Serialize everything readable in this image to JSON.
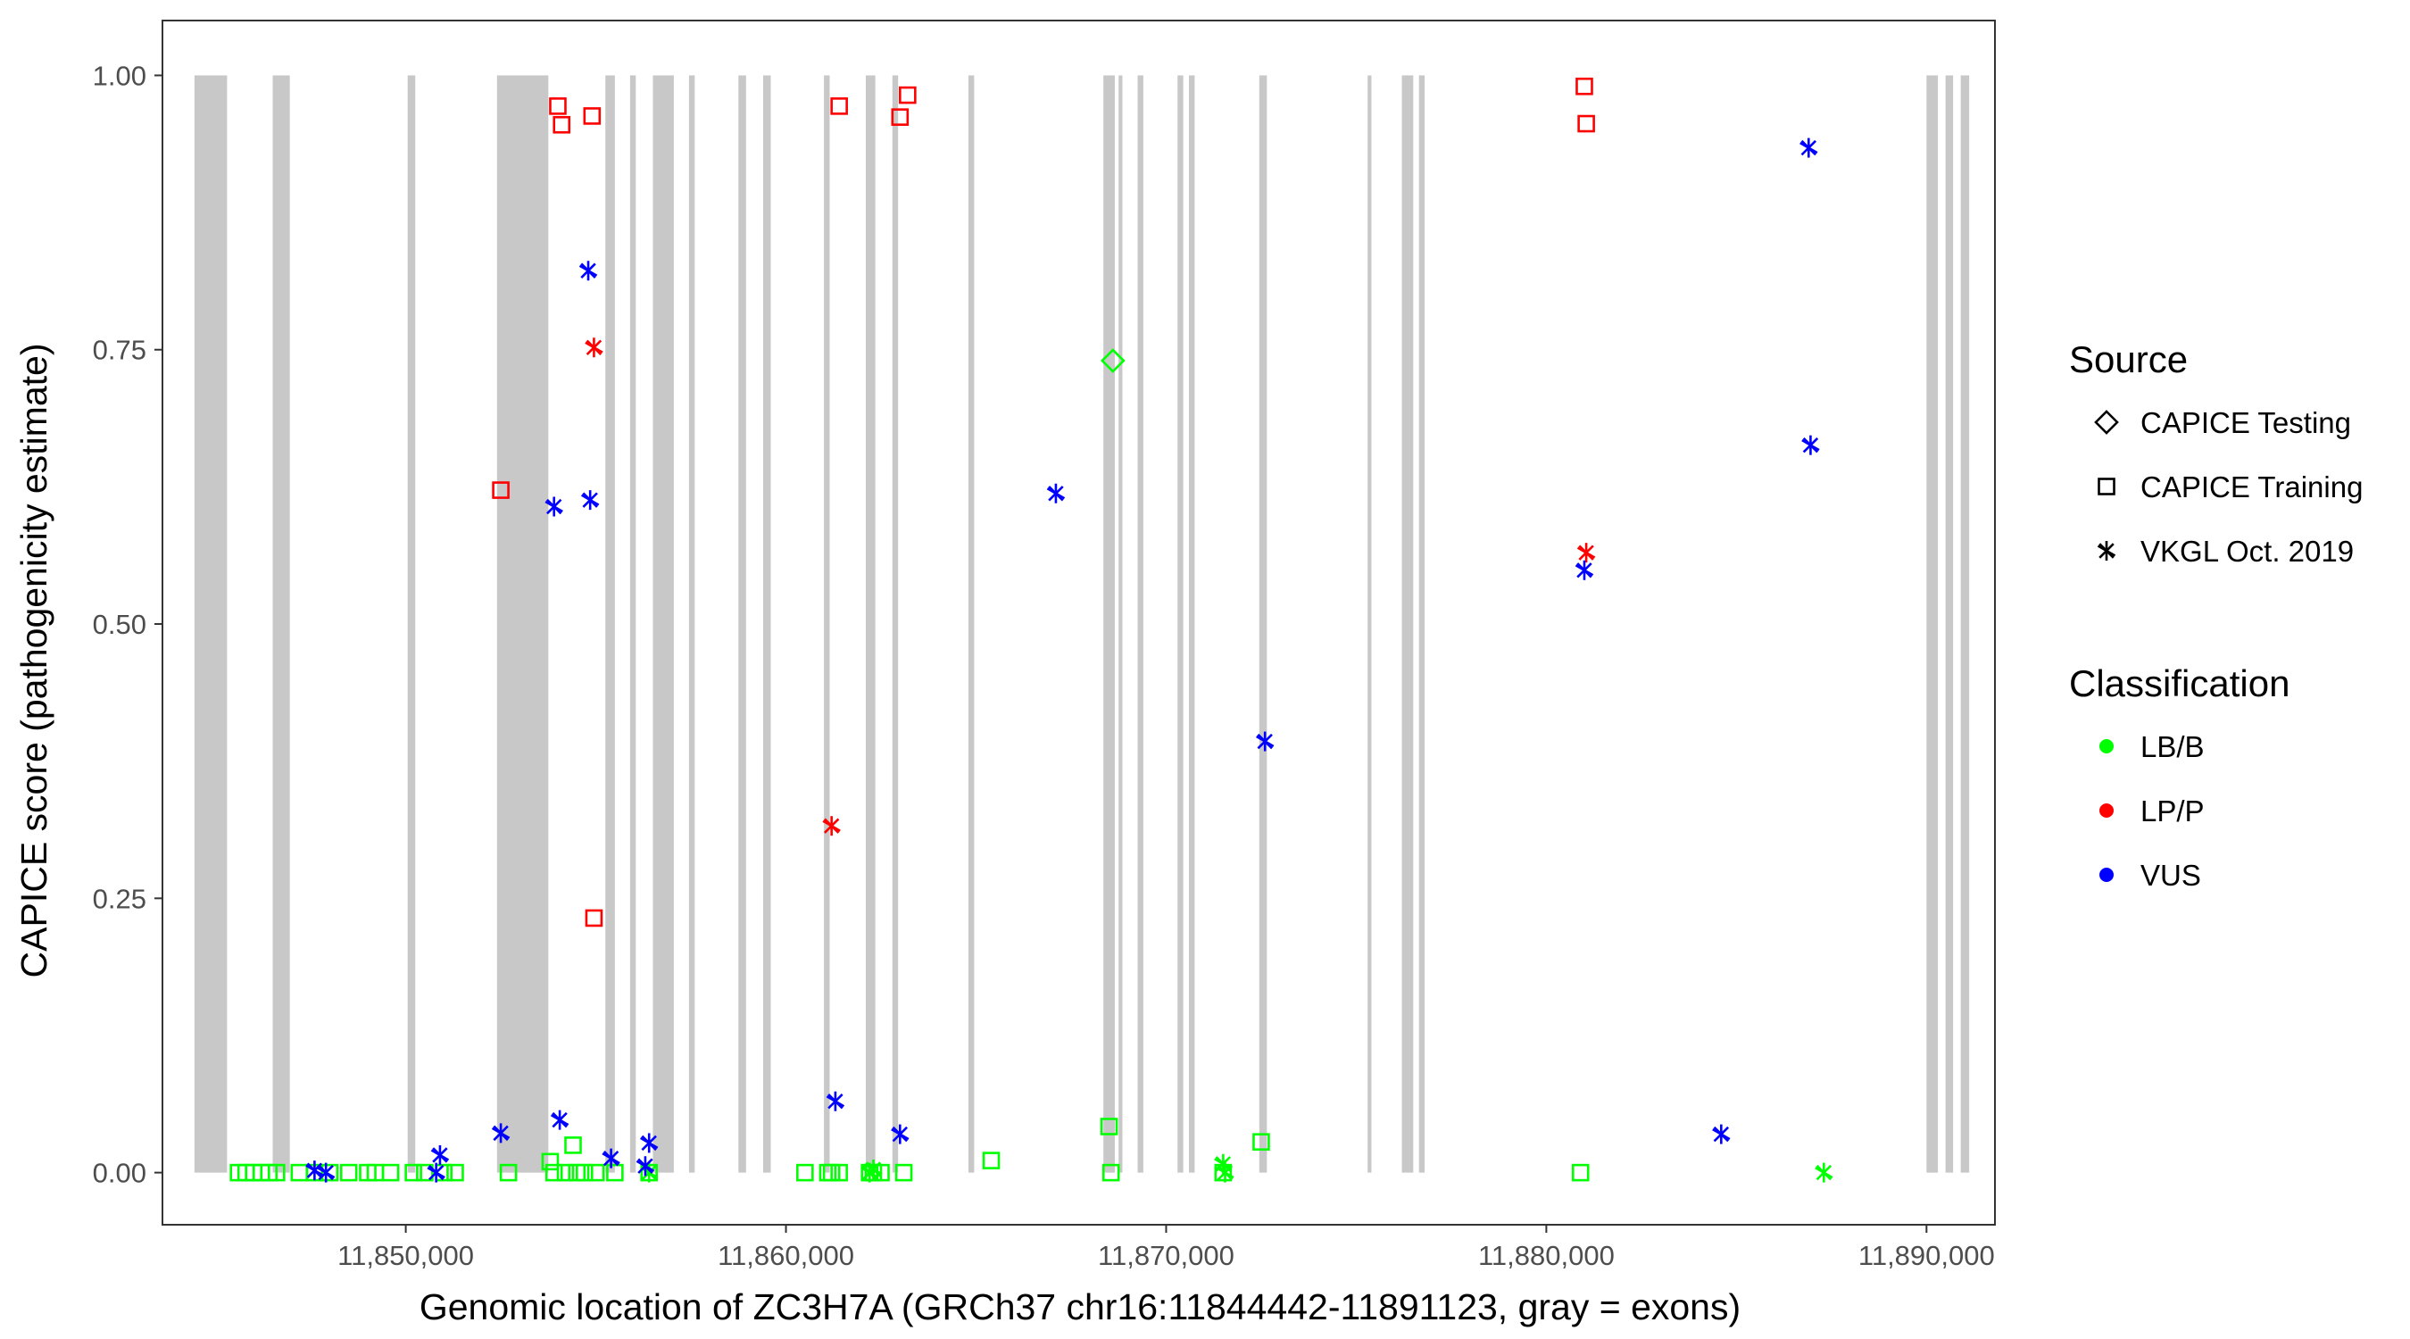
{
  "chart_data": {
    "type": "scatter",
    "xlabel": "Genomic location of ZC3H7A (GRCh37 chr16:11844442-11891123, gray = exons)",
    "ylabel": "CAPICE score (pathogenicity estimate)",
    "xlim": [
      11843600,
      11891800
    ],
    "ylim": [
      -0.0475,
      1.05
    ],
    "x_ticks": [
      11850000,
      11860000,
      11870000,
      11880000,
      11890000
    ],
    "x_tick_labels": [
      "11,850,000",
      "11,860,000",
      "11,870,000",
      "11,880,000",
      "11,890,000"
    ],
    "y_ticks": [
      0,
      0.25,
      0.5,
      0.75,
      1.0
    ],
    "y_tick_labels": [
      "0.00",
      "0.25",
      "0.50",
      "0.75",
      "1.00"
    ],
    "grid": false,
    "exons": [
      [
        11844442,
        11845300
      ],
      [
        11846500,
        11846950
      ],
      [
        11850050,
        11850250
      ],
      [
        11852400,
        11853750
      ],
      [
        11855250,
        11855500
      ],
      [
        11855900,
        11856050
      ],
      [
        11856500,
        11857050
      ],
      [
        11857450,
        11857600
      ],
      [
        11858750,
        11858950
      ],
      [
        11859400,
        11859600
      ],
      [
        11861000,
        11861150
      ],
      [
        11862100,
        11862350
      ],
      [
        11862800,
        11862950
      ],
      [
        11864800,
        11864950
      ],
      [
        11868350,
        11868650
      ],
      [
        11868750,
        11868850
      ],
      [
        11869250,
        11869400
      ],
      [
        11870300,
        11870450
      ],
      [
        11870600,
        11870750
      ],
      [
        11872450,
        11872650
      ],
      [
        11875300,
        11875400
      ],
      [
        11876200,
        11876500
      ],
      [
        11876650,
        11876800
      ],
      [
        11890000,
        11890300
      ],
      [
        11890500,
        11890700
      ],
      [
        11890900,
        11891123
      ]
    ],
    "legend": {
      "source_title": "Source",
      "source_items": [
        {
          "label": "CAPICE Testing",
          "shape": "diamond"
        },
        {
          "label": "CAPICE Training",
          "shape": "square"
        },
        {
          "label": "VKGL Oct. 2019",
          "shape": "asterisk"
        }
      ],
      "class_title": "Classification",
      "class_items": [
        {
          "label": "LB/B",
          "color": "#00ff00"
        },
        {
          "label": "LP/P",
          "color": "#ff0000"
        },
        {
          "label": "VUS",
          "color": "#0000ff"
        }
      ],
      "placement": "right"
    },
    "series": [
      {
        "name": "CAPICE Training",
        "class": "LB/B",
        "shape": "square",
        "color": "#00ff00",
        "x": [
          11845600,
          11845800,
          11846000,
          11846200,
          11846400,
          11846600,
          11847200,
          11847600,
          11848000,
          11848500,
          11849000,
          11849200,
          11849600,
          11850200,
          11850500,
          11851000,
          11851300,
          11852700,
          11853800,
          11853900,
          11854200,
          11854400,
          11854500,
          11854700,
          11855000,
          11855500,
          11856400,
          11860500,
          11861100,
          11861200,
          11861400,
          11862200,
          11862300,
          11862500,
          11863100,
          11865400,
          11868500,
          11868550,
          11871500,
          11872500,
          11880900
        ],
        "y": [
          0,
          0,
          0,
          0,
          0,
          0,
          0,
          0,
          0,
          0,
          0,
          0,
          0,
          0,
          0,
          0,
          0,
          0,
          0.01,
          0,
          0,
          0.025,
          0,
          0,
          0,
          0,
          0,
          0,
          0,
          0,
          0,
          0,
          0,
          0,
          0,
          0.011,
          0.042,
          0,
          0,
          0.028,
          0
        ]
      },
      {
        "name": "CAPICE Training",
        "class": "LP/P",
        "shape": "square",
        "color": "#ff0000",
        "x": [
          11852500,
          11854000,
          11854100,
          11854900,
          11854950,
          11861400,
          11863000,
          11863200,
          11881000,
          11881050
        ],
        "y": [
          0.622,
          0.972,
          0.955,
          0.963,
          0.232,
          0.972,
          0.962,
          0.982,
          0.99,
          0.956
        ]
      },
      {
        "name": "CAPICE Testing",
        "class": "LB/B",
        "shape": "diamond",
        "color": "#00ff00",
        "x": [
          11868600
        ],
        "y": [
          0.74
        ]
      },
      {
        "name": "VKGL Oct. 2019",
        "class": "LB/B",
        "shape": "asterisk",
        "color": "#00ff00",
        "x": [
          11856400,
          11862200,
          11862300,
          11871500,
          11871550,
          11887300
        ],
        "y": [
          0,
          0,
          0.003,
          0.008,
          0,
          0
        ]
      },
      {
        "name": "VKGL Oct. 2019",
        "class": "LP/P",
        "shape": "asterisk",
        "color": "#ff0000",
        "x": [
          11854950,
          11861200,
          11881050
        ],
        "y": [
          0.752,
          0.316,
          0.565
        ]
      },
      {
        "name": "VKGL Oct. 2019",
        "class": "VUS",
        "shape": "asterisk",
        "color": "#0000ff",
        "x": [
          11847600,
          11847900,
          11850800,
          11850900,
          11852500,
          11853900,
          11854050,
          11854800,
          11854850,
          11855400,
          11856300,
          11856400,
          11861300,
          11863000,
          11867100,
          11872600,
          11881000,
          11884600,
          11886900,
          11886950
        ],
        "y": [
          0.002,
          0,
          0,
          0.016,
          0.036,
          0.607,
          0.048,
          0.822,
          0.613,
          0.013,
          0.006,
          0.027,
          0.065,
          0.035,
          0.619,
          0.393,
          0.549,
          0.035,
          0.934,
          0.663
        ]
      }
    ]
  }
}
